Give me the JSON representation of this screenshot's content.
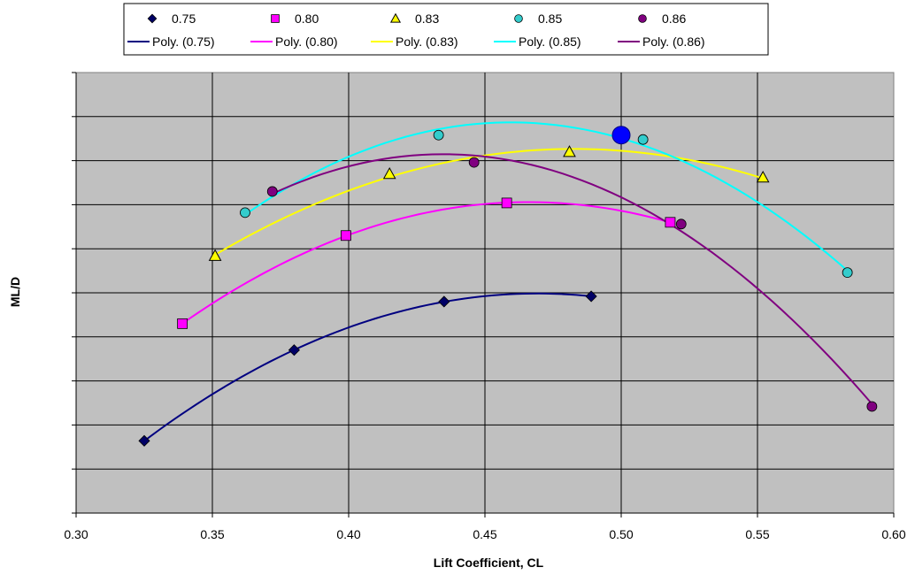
{
  "chart_data": {
    "type": "scatter",
    "title": "",
    "xlabel": "Lift Coefficient, CL",
    "ylabel": "ML/D",
    "xlim": [
      0.3,
      0.6
    ],
    "ylim": [
      0,
      10
    ],
    "x_ticks": [
      "0.30",
      "0.35",
      "0.40",
      "0.45",
      "0.50",
      "0.55",
      "0.60"
    ],
    "y_tick_labels_shown": false,
    "grid": true,
    "plot_background": "#c0c0c0",
    "legend_position": "top",
    "series": [
      {
        "name": "0.75",
        "trend_name": "Poly. (0.75)",
        "marker": "diamond",
        "marker_color": "#000066",
        "line_color": "#000080",
        "points": [
          [
            0.325,
            1.64
          ],
          [
            0.38,
            3.7
          ],
          [
            0.435,
            4.8
          ],
          [
            0.489,
            4.92
          ]
        ]
      },
      {
        "name": "0.80",
        "trend_name": "Poly. (0.80)",
        "marker": "square",
        "marker_color": "#ff00ff",
        "line_color": "#ff00ff",
        "points": [
          [
            0.339,
            4.3
          ],
          [
            0.399,
            6.3
          ],
          [
            0.458,
            7.04
          ],
          [
            0.518,
            6.6
          ]
        ]
      },
      {
        "name": "0.83",
        "trend_name": "Poly. (0.83)",
        "marker": "triangle",
        "marker_color": "#ffff00",
        "line_color": "#ffff00",
        "points": [
          [
            0.351,
            5.84
          ],
          [
            0.415,
            7.7
          ],
          [
            0.481,
            8.2
          ],
          [
            0.552,
            7.62
          ]
        ]
      },
      {
        "name": "0.85",
        "trend_name": "Poly. (0.85)",
        "marker": "circle",
        "marker_color": "#33cccc",
        "line_color": "#00ffff",
        "points": [
          [
            0.362,
            6.82
          ],
          [
            0.433,
            8.58
          ],
          [
            0.508,
            8.48
          ],
          [
            0.583,
            5.46
          ]
        ]
      },
      {
        "name": "0.86",
        "trend_name": "Poly. (0.86)",
        "marker": "circle",
        "marker_color": "#800080",
        "line_color": "#800080",
        "points": [
          [
            0.372,
            7.3
          ],
          [
            0.446,
            7.96
          ],
          [
            0.522,
            6.56
          ],
          [
            0.592,
            2.42
          ]
        ]
      }
    ],
    "highlight_point": {
      "x": 0.5,
      "y": 8.58,
      "color": "#0000ff"
    }
  }
}
